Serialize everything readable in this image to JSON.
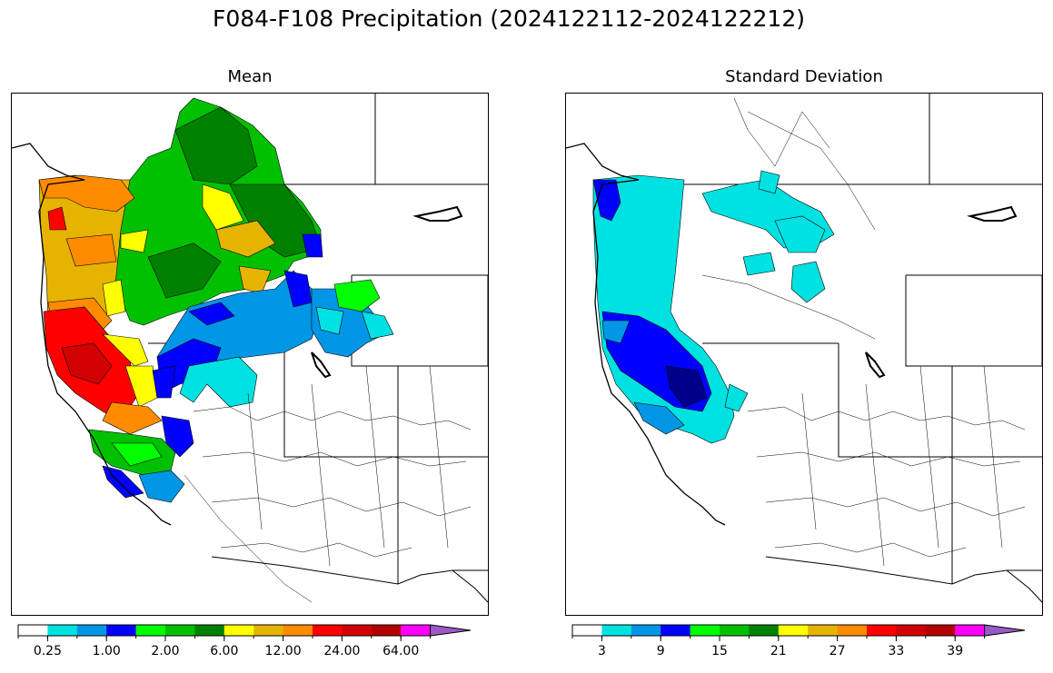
{
  "title": "F084-F108 Precipitation (2024122112-2024122212)",
  "panels": [
    {
      "id": "mean",
      "title": "Mean"
    },
    {
      "id": "std",
      "title": "Standard Deviation"
    }
  ],
  "colors": [
    "#ffffff",
    "#00e1e1",
    "#0096e6",
    "#0000ff",
    "#00ff00",
    "#00c000",
    "#008000",
    "#ffff00",
    "#e6b400",
    "#ff8c00",
    "#ff0000",
    "#d20000",
    "#b40000",
    "#ff00ff",
    "#9b59c8"
  ],
  "mean_colorbar": {
    "tick_labels": [
      "0.25",
      "1.00",
      "2.00",
      "6.00",
      "12.00",
      "24.00",
      "64.00"
    ],
    "tick_positions": [
      1,
      3,
      5,
      7,
      9,
      11,
      13
    ]
  },
  "std_colorbar": {
    "tick_labels": [
      "3",
      "9",
      "15",
      "21",
      "27",
      "33",
      "39"
    ],
    "tick_positions": [
      1,
      3,
      5,
      7,
      9,
      11,
      13
    ]
  }
}
